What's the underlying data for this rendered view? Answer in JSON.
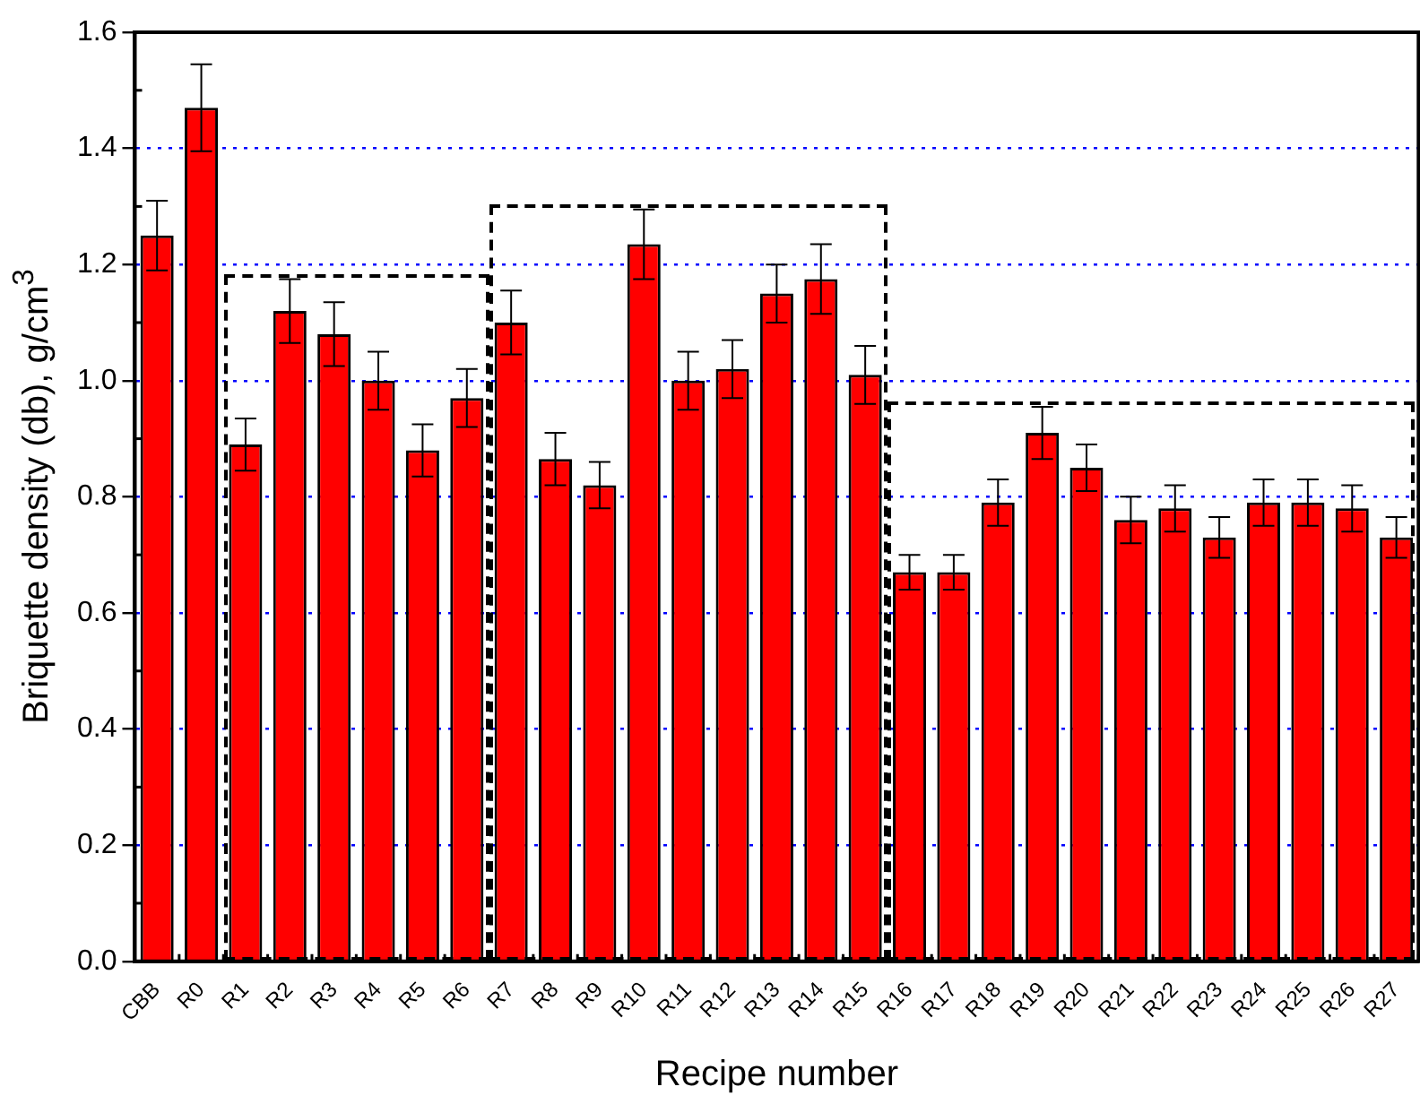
{
  "chart_data": {
    "type": "bar",
    "xlabel": "Recipe number",
    "ylabel": "Briquette density (db), g/cm$^{3}$",
    "categories": [
      "CBB",
      "R0",
      "R1",
      "R2",
      "R3",
      "R4",
      "R5",
      "R6",
      "R7",
      "R8",
      "R9",
      "R10",
      "R11",
      "R12",
      "R13",
      "R14",
      "R15",
      "R16",
      "R17",
      "R18",
      "R19",
      "R20",
      "R21",
      "R22",
      "R23",
      "R24",
      "R25",
      "R26",
      "R27"
    ],
    "values": [
      1.25,
      1.47,
      0.89,
      1.12,
      1.08,
      1.0,
      0.88,
      0.97,
      1.1,
      0.865,
      0.82,
      1.235,
      1.0,
      1.02,
      1.15,
      1.175,
      1.01,
      0.67,
      0.67,
      0.79,
      0.91,
      0.85,
      0.76,
      0.78,
      0.73,
      0.79,
      0.79,
      0.78,
      0.73
    ],
    "errors": [
      0.06,
      0.075,
      0.045,
      0.055,
      0.055,
      0.05,
      0.045,
      0.05,
      0.055,
      0.045,
      0.04,
      0.06,
      0.05,
      0.05,
      0.05,
      0.06,
      0.05,
      0.03,
      0.03,
      0.04,
      0.045,
      0.04,
      0.04,
      0.04,
      0.035,
      0.04,
      0.04,
      0.04,
      0.035
    ],
    "color": "#ff0000",
    "ylim": [
      0,
      1.6
    ],
    "yticks": [
      {
        "value": 0,
        "label": "0.0"
      },
      0.2,
      0.4,
      0.6,
      0.8,
      {
        "value": 1,
        "label": "1.0"
      },
      1.2,
      1.4,
      1.6
    ],
    "grid": "y",
    "legend": false
  }
}
